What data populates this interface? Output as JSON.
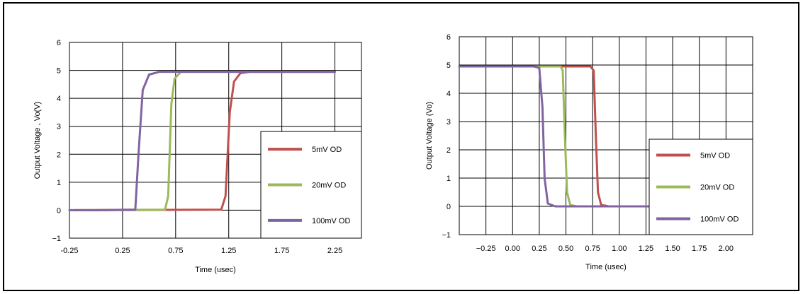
{
  "chart_data": [
    {
      "type": "line",
      "title": "",
      "xlabel": "Time (usec)",
      "ylabel": "Output Voltage , Vo(V)",
      "xlim": [
        -0.25,
        2.5
      ],
      "ylim": [
        -1,
        6
      ],
      "xticks": [
        -0.25,
        0.25,
        0.75,
        1.25,
        1.75,
        2.25
      ],
      "xtick_labels": [
        "-0.25",
        "0.25",
        "0.75",
        "1.25",
        "1.75",
        "2.25"
      ],
      "xgrid": [
        -0.25,
        0.25,
        0.75,
        1.25,
        1.75,
        2.25,
        2.5
      ],
      "yticks": [
        -1,
        0,
        1,
        2,
        3,
        4,
        5,
        6
      ],
      "ytick_labels": [
        "−1",
        "0",
        "1",
        "2",
        "3",
        "4",
        "5",
        "6"
      ],
      "grid": true,
      "legend_position": "bottom-right",
      "series": [
        {
          "name": "5mV OD",
          "color": "#c0504d",
          "x": [
            -0.2,
            1.18,
            1.22,
            1.26,
            1.3,
            1.36,
            1.45,
            2.25
          ],
          "y": [
            0.0,
            0.02,
            0.5,
            3.5,
            4.6,
            4.9,
            4.95,
            4.95
          ]
        },
        {
          "name": "20mV OD",
          "color": "#9bbb59",
          "x": [
            -0.2,
            0.65,
            0.68,
            0.71,
            0.74,
            0.8,
            2.25
          ],
          "y": [
            0.0,
            0.02,
            0.5,
            3.8,
            4.7,
            4.95,
            4.95
          ]
        },
        {
          "name": "100mV OD",
          "color": "#8064a2",
          "x": [
            -0.25,
            0.0,
            0.37,
            0.4,
            0.44,
            0.5,
            0.6,
            2.25
          ],
          "y": [
            0.0,
            0.0,
            0.02,
            2.0,
            4.3,
            4.85,
            4.95,
            4.95
          ]
        }
      ]
    },
    {
      "type": "line",
      "title": "",
      "xlabel": "Time (usec)",
      "ylabel": "Output Voltage (Vo)",
      "xlim": [
        -0.5,
        2.25
      ],
      "ylim": [
        -1,
        6
      ],
      "xticks": [
        -0.25,
        0.0,
        0.25,
        0.5,
        0.75,
        1.0,
        1.25,
        1.5,
        1.75,
        2.0
      ],
      "xtick_labels": [
        "−0.25",
        "0.00",
        "0.25",
        "0.50",
        "0.75",
        "1.00",
        "1.25",
        "1.50",
        "1.75",
        "2.00"
      ],
      "xgrid": [
        -0.5,
        -0.25,
        0.0,
        0.25,
        0.5,
        0.75,
        1.0,
        1.25,
        1.5,
        1.75,
        2.0,
        2.25
      ],
      "yticks": [
        -1,
        0,
        1,
        2,
        3,
        4,
        5,
        6
      ],
      "ytick_labels": [
        "−1",
        "0",
        "1",
        "2",
        "3",
        "4",
        "5",
        "6"
      ],
      "grid": true,
      "legend_position": "bottom-right",
      "series": [
        {
          "name": "5mV OD",
          "color": "#c0504d",
          "x": [
            -0.5,
            0.73,
            0.76,
            0.78,
            0.8,
            0.83,
            0.9,
            2.15
          ],
          "y": [
            4.95,
            4.95,
            4.8,
            2.5,
            0.5,
            0.05,
            0.0,
            0.0
          ]
        },
        {
          "name": "20mV OD",
          "color": "#9bbb59",
          "x": [
            -0.5,
            0.45,
            0.47,
            0.49,
            0.51,
            0.54,
            0.6,
            2.15
          ],
          "y": [
            4.95,
            4.95,
            4.8,
            2.5,
            0.5,
            0.05,
            0.0,
            0.0
          ]
        },
        {
          "name": "100mV OD",
          "color": "#8064a2",
          "x": [
            -0.5,
            0.0,
            0.2,
            0.25,
            0.28,
            0.3,
            0.33,
            0.4,
            2.15
          ],
          "y": [
            4.95,
            4.95,
            4.95,
            4.9,
            3.5,
            1.0,
            0.1,
            0.0,
            0.0
          ]
        }
      ]
    }
  ]
}
